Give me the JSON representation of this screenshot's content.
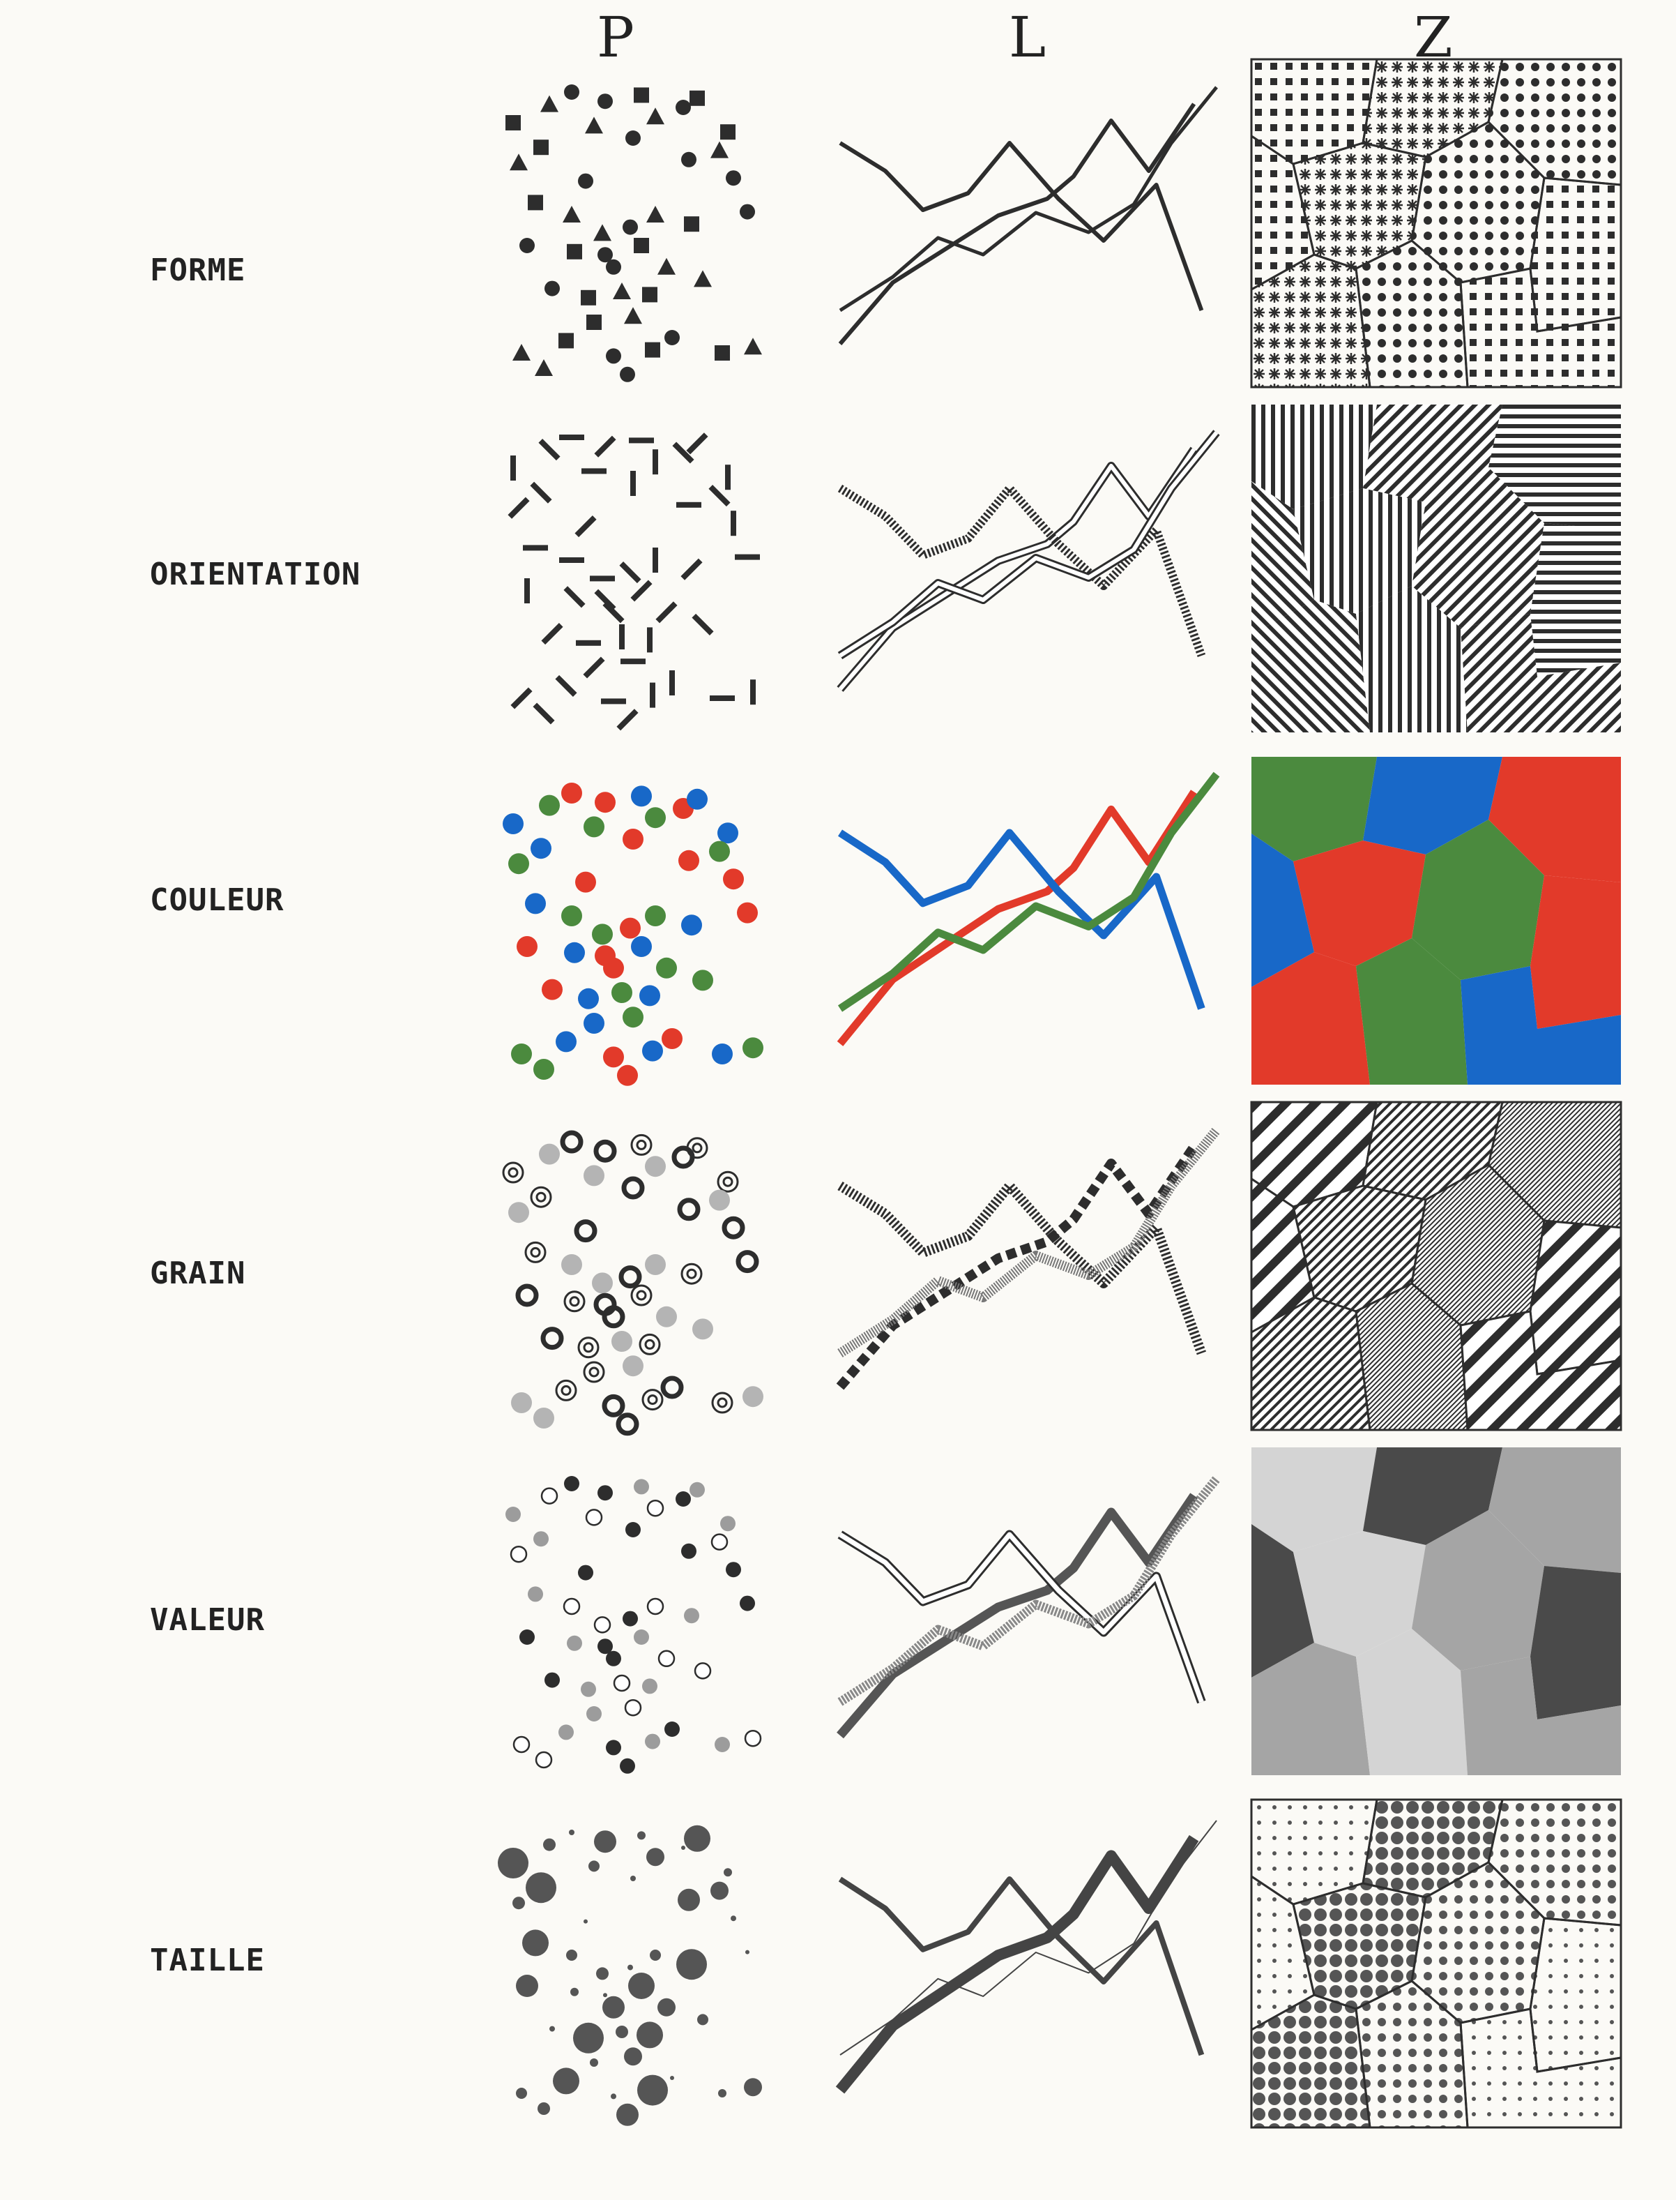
{
  "columns": [
    "P",
    "L",
    "Z"
  ],
  "rows": [
    {
      "key": "forme",
      "label": "FORME"
    },
    {
      "key": "orientation",
      "label": "ORIENTATION"
    },
    {
      "key": "couleur",
      "label": "COULEUR"
    },
    {
      "key": "grain",
      "label": "GRAIN"
    },
    {
      "key": "valeur",
      "label": "VALEUR"
    },
    {
      "key": "taille",
      "label": "TAILLE"
    }
  ],
  "colors": {
    "ink": "#2d2d2d",
    "red": "#e23a2a",
    "blue": "#1868c8",
    "green": "#4b8a3e",
    "grey": "#9c9c9c",
    "background": "#fbfaf6"
  }
}
